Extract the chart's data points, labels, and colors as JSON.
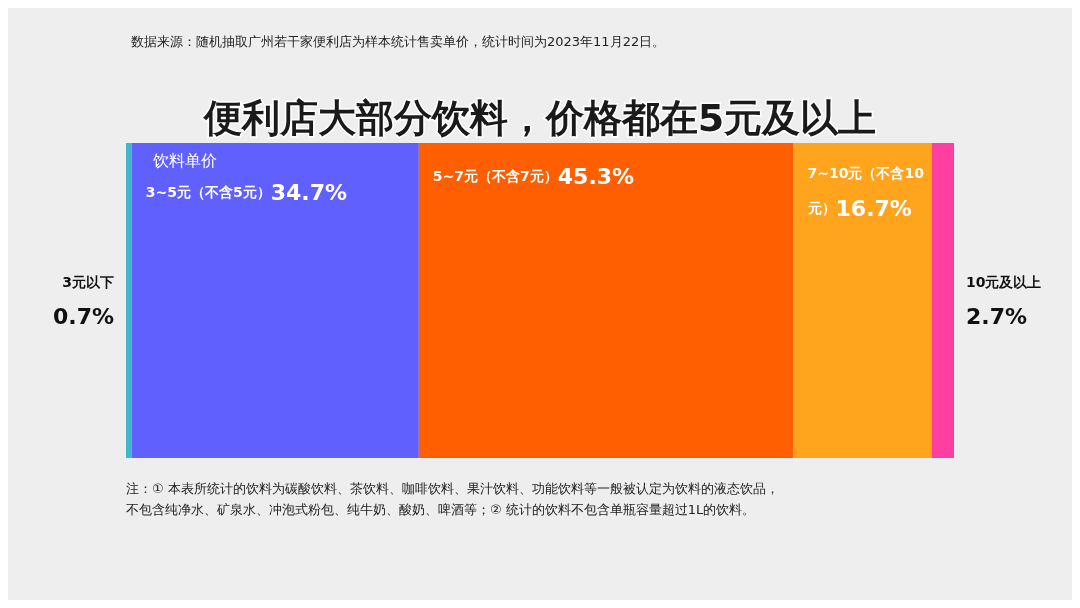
{
  "chart_data": {
    "type": "bar",
    "orientation": "horizontal",
    "stacked": true,
    "title": "便利店大部分饮料，价格都在5元及以上",
    "subtitle": "数据来源：随机抽取广州若干家便利店为样本统计售卖单价，统计时间为2023年11月22日。",
    "legend_title": "饮料单价",
    "categories": [
      null
    ],
    "series": [
      {
        "name": "3元以下",
        "color": "#3fb6c9",
        "values": [
          0.7
        ],
        "value_labels": [
          "0.7%"
        ]
      },
      {
        "name": "3~5元（不含5元）",
        "color": "#6060ff",
        "values": [
          34.7
        ],
        "value_labels": [
          "34.7%"
        ]
      },
      {
        "name": "5~7元（不含7元）",
        "color": "#ff5f00",
        "values": [
          45.3
        ],
        "value_labels": [
          "45.3%"
        ]
      },
      {
        "name": "7~10元（不含10元）",
        "color": "#ffa41c",
        "values": [
          16.7
        ],
        "value_labels": [
          "16.7%"
        ]
      },
      {
        "name": "10元及以上",
        "color": "#ff3fa0",
        "values": [
          2.7
        ],
        "value_labels": [
          "2.7%"
        ]
      }
    ],
    "annotations": [
      "注：① 本表所统计的饮料为碳酸饮料、茶饮料、咖啡饮料、果汁饮料、功能饮料等一般被认定为饮料的液态饮品，",
      "不包含纯净水、矿泉水、冲泡式粉包、纯牛奶、酸奶、啤酒等；② 统计的饮料不包含单瓶容量超过1L的饮料。"
    ],
    "xlim": [
      0,
      100.1
    ],
    "legend": false
  }
}
